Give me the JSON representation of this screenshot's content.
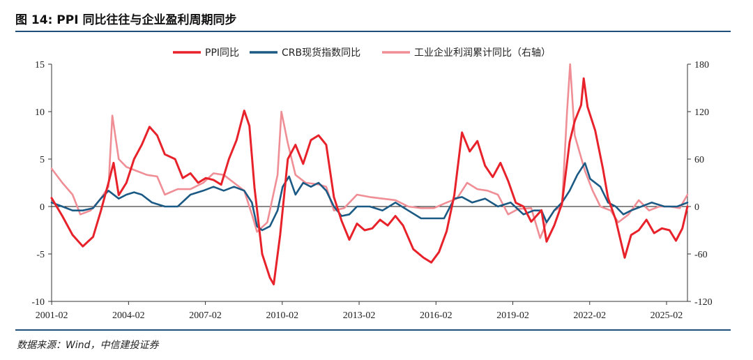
{
  "header": {
    "title": "图 14: PPI 同比往往与企业盈利周期同步"
  },
  "footer": {
    "source": "数据来源：Wind，中信建投证券"
  },
  "chart_data": {
    "type": "line",
    "title": "图 14: PPI 同比往往与企业盈利周期同步",
    "x_ticks": [
      "2001-02",
      "2004-02",
      "2007-02",
      "2010-02",
      "2013-02",
      "2016-02",
      "2019-02",
      "2022-02",
      "2025-02"
    ],
    "x_range": [
      2001.08,
      2025.9
    ],
    "ylim_left": [
      -10,
      15
    ],
    "ylim_right": [
      -120,
      180
    ],
    "y_ticks_left": [
      "15",
      "10",
      "5",
      "0",
      "-5",
      "-10"
    ],
    "y_ticks_right": [
      "180",
      "120",
      "60",
      "0",
      "-60",
      "-120"
    ],
    "legend_position": "top",
    "series": [
      {
        "name": "PPI同比",
        "axis": "left",
        "color": "#e8222a",
        "points": [
          [
            2001.08,
            0.9
          ],
          [
            2001.5,
            -1.0
          ],
          [
            2001.9,
            -3.0
          ],
          [
            2002.3,
            -4.2
          ],
          [
            2002.7,
            -3.2
          ],
          [
            2003.0,
            -0.5
          ],
          [
            2003.3,
            2.5
          ],
          [
            2003.5,
            4.6
          ],
          [
            2003.7,
            1.2
          ],
          [
            2004.0,
            2.5
          ],
          [
            2004.3,
            5.0
          ],
          [
            2004.6,
            6.5
          ],
          [
            2004.9,
            8.4
          ],
          [
            2005.2,
            7.5
          ],
          [
            2005.5,
            5.5
          ],
          [
            2005.9,
            5.0
          ],
          [
            2006.2,
            3.0
          ],
          [
            2006.5,
            3.5
          ],
          [
            2006.8,
            2.5
          ],
          [
            2007.1,
            3.0
          ],
          [
            2007.4,
            2.8
          ],
          [
            2007.7,
            2.3
          ],
          [
            2008.0,
            5.0
          ],
          [
            2008.3,
            7.0
          ],
          [
            2008.6,
            10.1
          ],
          [
            2008.8,
            8.5
          ],
          [
            2009.0,
            2.0
          ],
          [
            2009.3,
            -5.0
          ],
          [
            2009.6,
            -7.5
          ],
          [
            2009.75,
            -8.2
          ],
          [
            2010.0,
            -3.0
          ],
          [
            2010.3,
            5.0
          ],
          [
            2010.6,
            6.5
          ],
          [
            2010.9,
            4.5
          ],
          [
            2011.2,
            7.0
          ],
          [
            2011.5,
            7.5
          ],
          [
            2011.8,
            6.5
          ],
          [
            2012.1,
            1.0
          ],
          [
            2012.4,
            -1.5
          ],
          [
            2012.7,
            -3.5
          ],
          [
            2013.0,
            -1.8
          ],
          [
            2013.3,
            -2.5
          ],
          [
            2013.6,
            -2.3
          ],
          [
            2013.9,
            -1.4
          ],
          [
            2014.2,
            -2.0
          ],
          [
            2014.5,
            -1.0
          ],
          [
            2014.8,
            -2.0
          ],
          [
            2015.2,
            -4.5
          ],
          [
            2015.6,
            -5.4
          ],
          [
            2015.9,
            -5.9
          ],
          [
            2016.2,
            -4.8
          ],
          [
            2016.5,
            -2.6
          ],
          [
            2016.8,
            1.2
          ],
          [
            2017.1,
            7.8
          ],
          [
            2017.4,
            5.8
          ],
          [
            2017.7,
            6.9
          ],
          [
            2018.0,
            4.3
          ],
          [
            2018.3,
            3.1
          ],
          [
            2018.6,
            4.6
          ],
          [
            2018.9,
            2.7
          ],
          [
            2019.2,
            0.4
          ],
          [
            2019.5,
            0.0
          ],
          [
            2019.8,
            -1.6
          ],
          [
            2020.2,
            -0.4
          ],
          [
            2020.4,
            -3.7
          ],
          [
            2020.7,
            -2.0
          ],
          [
            2021.0,
            0.3
          ],
          [
            2021.3,
            6.8
          ],
          [
            2021.5,
            9.0
          ],
          [
            2021.75,
            10.7
          ],
          [
            2021.85,
            13.5
          ],
          [
            2022.0,
            10.5
          ],
          [
            2022.3,
            8.0
          ],
          [
            2022.6,
            4.0
          ],
          [
            2022.8,
            0.9
          ],
          [
            2023.1,
            -1.4
          ],
          [
            2023.45,
            -5.4
          ],
          [
            2023.7,
            -3.0
          ],
          [
            2024.0,
            -2.5
          ],
          [
            2024.3,
            -1.4
          ],
          [
            2024.6,
            -2.8
          ],
          [
            2024.9,
            -2.3
          ],
          [
            2025.2,
            -2.5
          ],
          [
            2025.45,
            -3.6
          ],
          [
            2025.7,
            -2.3
          ],
          [
            2025.9,
            0.0
          ]
        ]
      },
      {
        "name": "CRB现货指数同比",
        "axis": "right",
        "color": "#1b5a84",
        "points": [
          [
            2001.08,
            5
          ],
          [
            2001.5,
            0
          ],
          [
            2001.9,
            -5
          ],
          [
            2002.3,
            -5
          ],
          [
            2002.7,
            -2
          ],
          [
            2003.0,
            10
          ],
          [
            2003.3,
            20
          ],
          [
            2003.7,
            10
          ],
          [
            2004.0,
            15
          ],
          [
            2004.3,
            18
          ],
          [
            2004.6,
            15
          ],
          [
            2005.0,
            5
          ],
          [
            2005.5,
            0
          ],
          [
            2006.0,
            0
          ],
          [
            2006.5,
            15
          ],
          [
            2007.0,
            20
          ],
          [
            2007.4,
            25
          ],
          [
            2007.8,
            20
          ],
          [
            2008.2,
            25
          ],
          [
            2008.6,
            20
          ],
          [
            2008.9,
            5
          ],
          [
            2009.1,
            -25
          ],
          [
            2009.3,
            -30
          ],
          [
            2009.6,
            -25
          ],
          [
            2009.9,
            -5
          ],
          [
            2010.1,
            25
          ],
          [
            2010.35,
            38
          ],
          [
            2010.6,
            15
          ],
          [
            2010.9,
            30
          ],
          [
            2011.2,
            25
          ],
          [
            2011.5,
            30
          ],
          [
            2011.8,
            20
          ],
          [
            2012.1,
            0
          ],
          [
            2012.4,
            -12
          ],
          [
            2012.7,
            -10
          ],
          [
            2013.0,
            0
          ],
          [
            2013.5,
            0
          ],
          [
            2014.0,
            -5
          ],
          [
            2014.5,
            5
          ],
          [
            2015.0,
            -5
          ],
          [
            2015.5,
            -15
          ],
          [
            2016.0,
            -15
          ],
          [
            2016.4,
            -15
          ],
          [
            2016.8,
            10
          ],
          [
            2017.1,
            12
          ],
          [
            2017.5,
            5
          ],
          [
            2018.0,
            10
          ],
          [
            2018.5,
            0
          ],
          [
            2019.0,
            5
          ],
          [
            2019.5,
            -10
          ],
          [
            2019.9,
            -5
          ],
          [
            2020.2,
            -5
          ],
          [
            2020.4,
            -20
          ],
          [
            2020.7,
            -5
          ],
          [
            2021.0,
            5
          ],
          [
            2021.3,
            20
          ],
          [
            2021.6,
            40
          ],
          [
            2021.9,
            55
          ],
          [
            2022.1,
            35
          ],
          [
            2022.5,
            25
          ],
          [
            2022.8,
            5
          ],
          [
            2023.1,
            0
          ],
          [
            2023.4,
            -10
          ],
          [
            2023.7,
            -5
          ],
          [
            2024.1,
            0
          ],
          [
            2024.5,
            5
          ],
          [
            2025.0,
            0
          ],
          [
            2025.5,
            0
          ],
          [
            2025.9,
            5
          ]
        ]
      },
      {
        "name": "工业企业利润累计同比（右轴）",
        "axis": "right",
        "color": "#f08e96",
        "points": [
          [
            2001.08,
            48
          ],
          [
            2001.5,
            30
          ],
          [
            2001.9,
            15
          ],
          [
            2002.2,
            -10
          ],
          [
            2002.6,
            -5
          ],
          [
            2003.0,
            10
          ],
          [
            2003.3,
            25
          ],
          [
            2003.45,
            115
          ],
          [
            2003.7,
            60
          ],
          [
            2004.0,
            50
          ],
          [
            2004.4,
            45
          ],
          [
            2004.8,
            40
          ],
          [
            2005.2,
            38
          ],
          [
            2005.5,
            15
          ],
          [
            2006.0,
            22
          ],
          [
            2006.5,
            22
          ],
          [
            2007.0,
            30
          ],
          [
            2007.4,
            42
          ],
          [
            2007.8,
            40
          ],
          [
            2008.2,
            30
          ],
          [
            2008.6,
            20
          ],
          [
            2008.9,
            -10
          ],
          [
            2009.1,
            -32
          ],
          [
            2009.5,
            -20
          ],
          [
            2009.9,
            40
          ],
          [
            2010.05,
            120
          ],
          [
            2010.3,
            80
          ],
          [
            2010.6,
            40
          ],
          [
            2011.0,
            30
          ],
          [
            2011.5,
            28
          ],
          [
            2011.8,
            25
          ],
          [
            2012.1,
            -5
          ],
          [
            2012.5,
            -2
          ],
          [
            2013.0,
            15
          ],
          [
            2013.5,
            12
          ],
          [
            2014.0,
            10
          ],
          [
            2014.5,
            8
          ],
          [
            2015.0,
            0
          ],
          [
            2015.5,
            -2
          ],
          [
            2016.0,
            -2
          ],
          [
            2016.5,
            5
          ],
          [
            2016.9,
            10
          ],
          [
            2017.3,
            30
          ],
          [
            2017.7,
            22
          ],
          [
            2018.1,
            20
          ],
          [
            2018.5,
            15
          ],
          [
            2018.9,
            -10
          ],
          [
            2019.3,
            -3
          ],
          [
            2019.8,
            -2
          ],
          [
            2020.15,
            -40
          ],
          [
            2020.4,
            -20
          ],
          [
            2020.7,
            -5
          ],
          [
            2021.0,
            0
          ],
          [
            2021.2,
            120
          ],
          [
            2021.32,
            180
          ],
          [
            2021.5,
            90
          ],
          [
            2021.9,
            45
          ],
          [
            2022.2,
            20
          ],
          [
            2022.5,
            0
          ],
          [
            2022.9,
            -5
          ],
          [
            2023.2,
            -20
          ],
          [
            2023.6,
            -10
          ],
          [
            2024.0,
            8
          ],
          [
            2024.4,
            -5
          ],
          [
            2024.8,
            0
          ],
          [
            2025.2,
            0
          ],
          [
            2025.6,
            -2
          ],
          [
            2025.9,
            15
          ]
        ]
      }
    ]
  }
}
